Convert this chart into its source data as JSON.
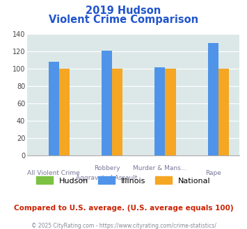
{
  "title_line1": "2019 Hudson",
  "title_line2": "Violent Crime Comparison",
  "cat_labels_top": [
    "",
    "Robbery",
    "Murder & Mans...",
    ""
  ],
  "cat_labels_bot": [
    "All Violent Crime",
    "Aggravated Assault",
    "",
    "Rape"
  ],
  "groups": [
    "Hudson",
    "Illinois",
    "National"
  ],
  "group_colors": [
    "#7bc142",
    "#4f94e8",
    "#f5a623"
  ],
  "values": {
    "Hudson": [
      0,
      0,
      0,
      0
    ],
    "Illinois": [
      108,
      121,
      102,
      130
    ],
    "National": [
      100,
      100,
      100,
      100
    ]
  },
  "ylim": [
    0,
    140
  ],
  "yticks": [
    0,
    20,
    40,
    60,
    80,
    100,
    120,
    140
  ],
  "plot_bg": "#dce8e8",
  "footer_text": "Compared to U.S. average. (U.S. average equals 100)",
  "copyright_text": "© 2025 CityRating.com - https://www.cityrating.com/crime-statistics/",
  "title_color": "#2255cc",
  "footer_color": "#cc2200",
  "copyright_color": "#888899"
}
